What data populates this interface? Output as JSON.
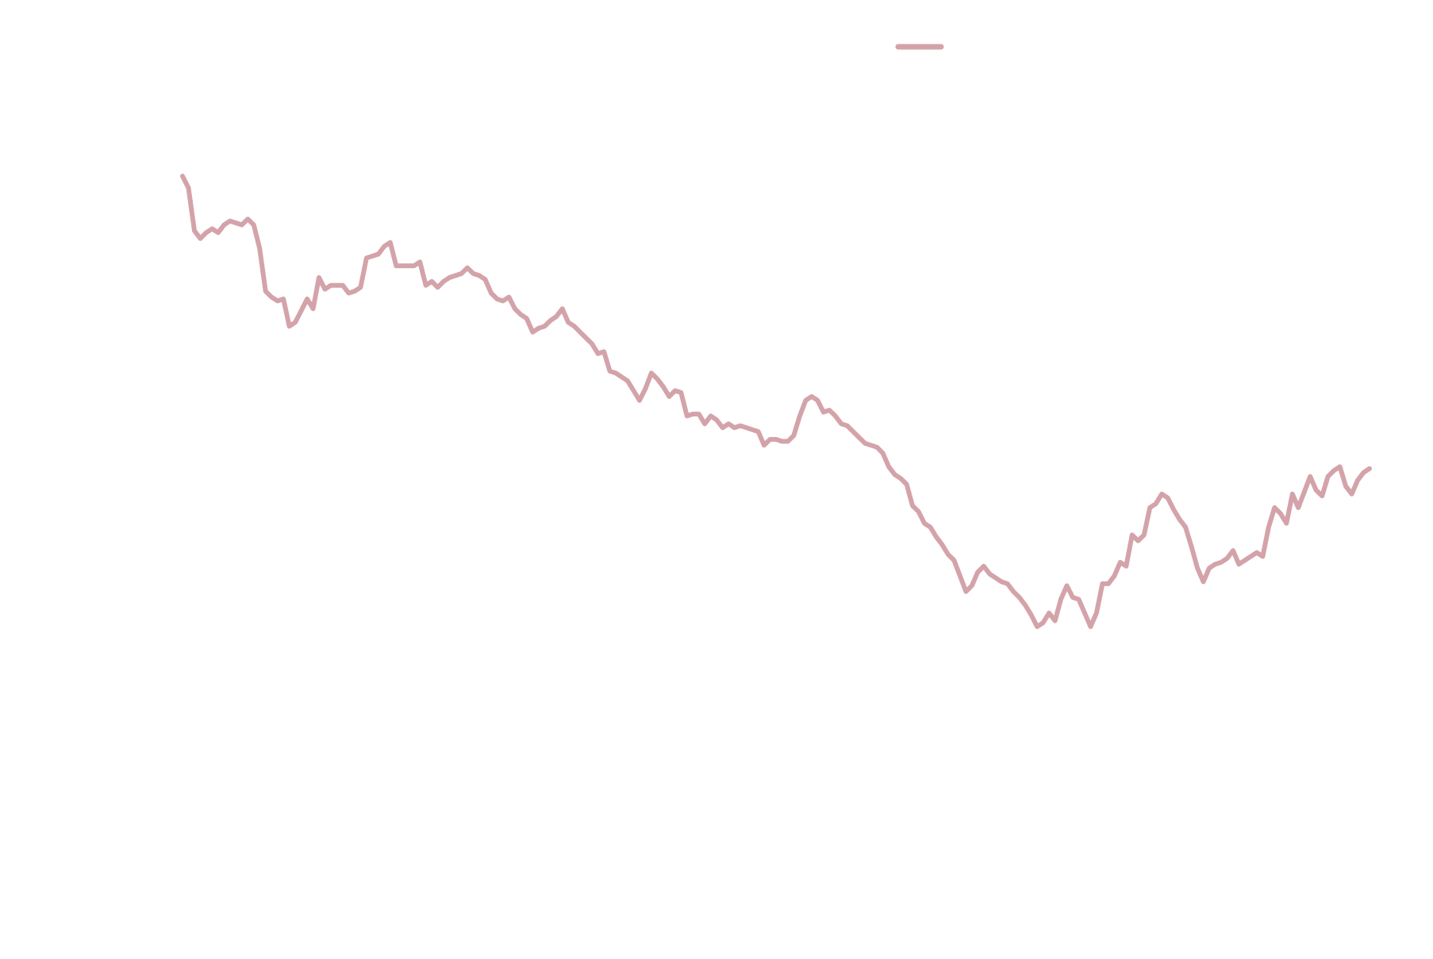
{
  "chart_data": {
    "type": "line",
    "title": "",
    "xlabel": "",
    "ylabel": "",
    "grid": false,
    "legend": {
      "placement": "top-right",
      "entries": [
        {
          "label": "",
          "color": "#d4a3aa"
        }
      ]
    },
    "series": [
      {
        "color": "#d4a3aa",
        "values": [
          96.9,
          96.3,
          94.1,
          93.7,
          94.0,
          94.2,
          94.0,
          94.4,
          94.6,
          94.5,
          94.4,
          94.7,
          94.4,
          93.2,
          91.0,
          90.7,
          90.5,
          90.6,
          89.2,
          89.4,
          90.0,
          90.6,
          90.1,
          91.7,
          91.1,
          91.3,
          91.3,
          91.3,
          90.9,
          91.0,
          91.2,
          92.7,
          92.8,
          92.9,
          93.3,
          93.5,
          92.3,
          92.3,
          92.3,
          92.3,
          92.5,
          91.3,
          91.5,
          91.2,
          91.5,
          91.7,
          91.8,
          91.9,
          92.2,
          91.9,
          91.8,
          91.6,
          90.9,
          90.6,
          90.5,
          90.7,
          90.1,
          89.8,
          89.6,
          88.9,
          89.1,
          89.2,
          89.5,
          89.7,
          90.1,
          89.4,
          89.2,
          88.9,
          88.6,
          88.3,
          87.8,
          87.9,
          86.9,
          86.8,
          86.6,
          86.4,
          85.9,
          85.4,
          86.0,
          86.8,
          86.5,
          86.1,
          85.6,
          85.9,
          85.8,
          84.6,
          84.7,
          84.7,
          84.2,
          84.6,
          84.4,
          84.0,
          84.2,
          84.0,
          84.1,
          84.0,
          83.9,
          83.8,
          83.1,
          83.4,
          83.4,
          83.3,
          83.3,
          83.6,
          84.6,
          85.4,
          85.6,
          85.4,
          84.8,
          84.9,
          84.6,
          84.2,
          84.1,
          83.8,
          83.5,
          83.2,
          83.1,
          83.0,
          82.7,
          82.0,
          81.6,
          81.4,
          81.1,
          80.0,
          79.7,
          79.1,
          78.9,
          78.4,
          78.0,
          77.5,
          77.2,
          76.4,
          75.6,
          75.9,
          76.6,
          76.9,
          76.5,
          76.3,
          76.1,
          76.0,
          75.6,
          75.3,
          74.9,
          74.4,
          73.8,
          74.0,
          74.5,
          74.1,
          75.2,
          75.9,
          75.3,
          75.2,
          74.5,
          73.8,
          74.5,
          76.0,
          76.0,
          76.4,
          77.1,
          76.9,
          78.5,
          78.2,
          78.5,
          79.9,
          80.1,
          80.6,
          80.4,
          79.8,
          79.3,
          78.9,
          77.9,
          76.8,
          76.1,
          76.8,
          77.0,
          77.1,
          77.3,
          77.7,
          77.0,
          77.2,
          77.4,
          77.6,
          77.4,
          78.9,
          79.9,
          79.6,
          79.1,
          80.6,
          79.9,
          80.7,
          81.5,
          80.8,
          80.5,
          81.5,
          81.8,
          82.0,
          81.0,
          80.6,
          81.3,
          81.7,
          81.9
        ]
      }
    ]
  }
}
